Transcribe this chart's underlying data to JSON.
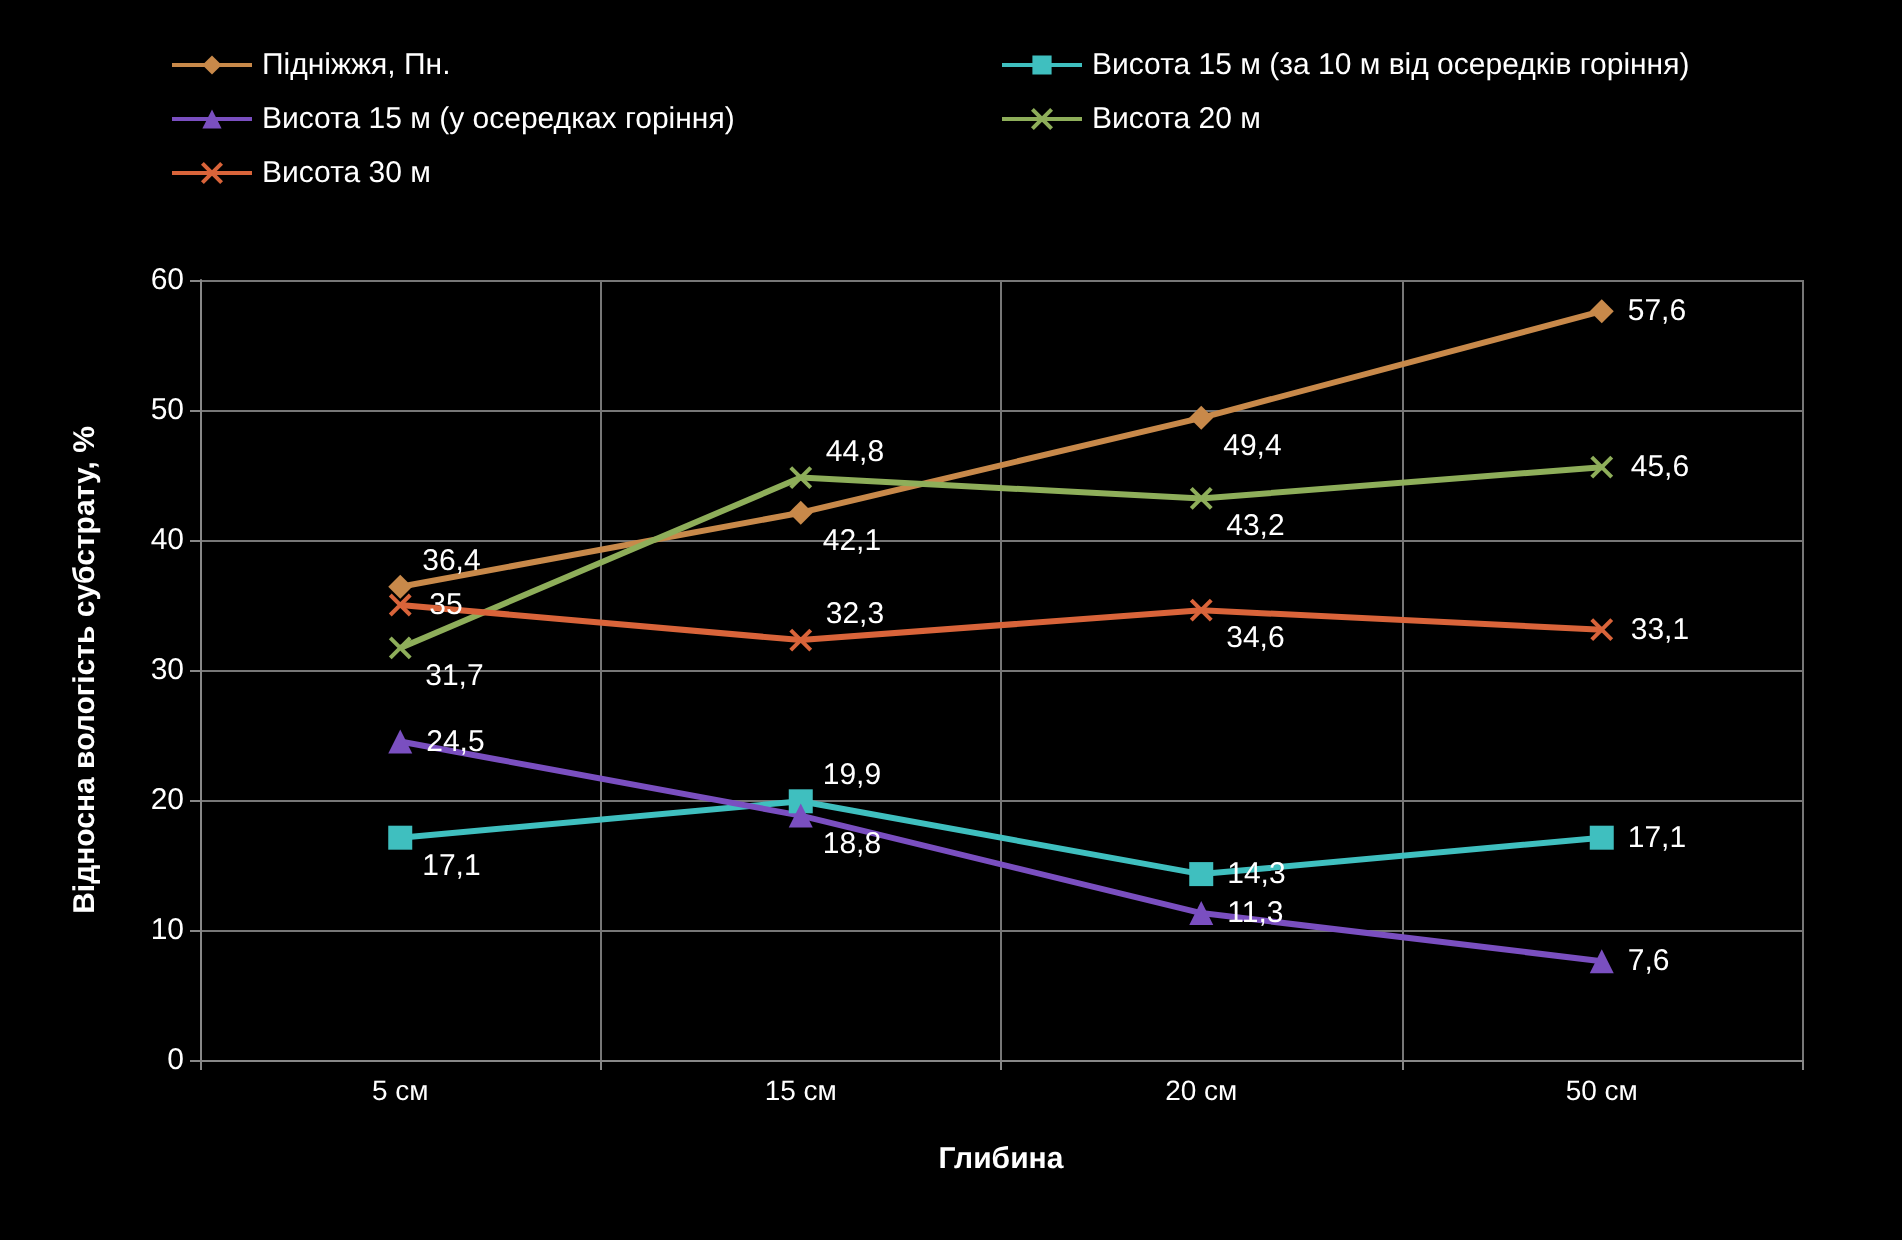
{
  "chart_data": {
    "type": "line",
    "xlabel": "Глибина",
    "ylabel": "Відносна вологість субстрату, %",
    "categories": [
      "5 см",
      "15 см",
      "20 см",
      "50 см"
    ],
    "series": [
      {
        "name": "Підніжжя, Пн.",
        "color": "#c8894a",
        "marker": "diamond",
        "values": [
          36.4,
          42.1,
          49.4,
          57.6
        ],
        "value_labels": [
          "36,4",
          "42,1",
          "49,4",
          "57,6"
        ]
      },
      {
        "name": "Висота 15 м (за 10 м від осередків горіння)",
        "color": "#3fbfbf",
        "marker": "square",
        "values": [
          17.1,
          19.9,
          14.3,
          17.1
        ],
        "value_labels": [
          "17,1",
          "19,9",
          "14,3",
          "17,1"
        ]
      },
      {
        "name": "Висота 15 м (у осередках горіння)",
        "color": "#7a4fc0",
        "marker": "triangle",
        "values": [
          24.5,
          18.8,
          11.3,
          7.6
        ],
        "value_labels": [
          "24,5",
          "18,8",
          "11,3",
          "7,6"
        ]
      },
      {
        "name": "Висота 20 м",
        "color": "#8eae5a",
        "marker": "cross",
        "values": [
          31.7,
          44.8,
          43.2,
          45.6
        ],
        "value_labels": [
          "31,7",
          "44,8",
          "43,2",
          "45,6"
        ]
      },
      {
        "name": "Висота 30 м",
        "color": "#d9643a",
        "marker": "cross",
        "values": [
          35,
          32.3,
          34.6,
          33.1
        ],
        "value_labels": [
          "35",
          "32,3",
          "34,6",
          "33,1"
        ]
      }
    ],
    "ylim": [
      0,
      60
    ],
    "yticks": [
      0,
      10,
      20,
      30,
      40,
      50,
      60
    ],
    "grid": true,
    "legend": "top"
  }
}
